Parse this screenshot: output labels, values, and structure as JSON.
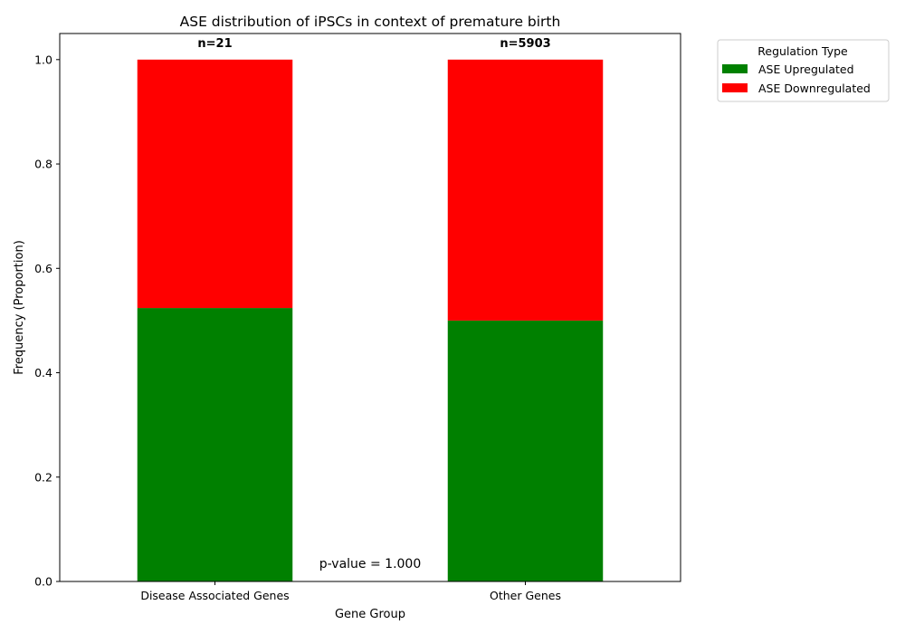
{
  "chart_data": {
    "type": "bar",
    "stacked": true,
    "title": "ASE distribution of iPSCs in context of premature birth",
    "xlabel": "Gene Group",
    "ylabel": "Frequency (Proportion)",
    "ylim": [
      0,
      1.05
    ],
    "yticks": [
      0.0,
      0.2,
      0.4,
      0.6,
      0.8,
      1.0
    ],
    "ytick_labels": [
      "0.0",
      "0.2",
      "0.4",
      "0.6",
      "0.8",
      "1.0"
    ],
    "categories": [
      "Disease Associated Genes",
      "Other Genes"
    ],
    "series": [
      {
        "name": "ASE Upregulated",
        "color": "#008000",
        "values": [
          0.524,
          0.5
        ]
      },
      {
        "name": "ASE Downregulated",
        "color": "#ff0000",
        "values": [
          0.476,
          0.5
        ]
      }
    ],
    "bar_count_labels": [
      "n=21",
      "n=5903"
    ],
    "annotation": "p-value = 1.000",
    "legend": {
      "title": "Regulation Type",
      "placement": "outside-top-right"
    }
  }
}
